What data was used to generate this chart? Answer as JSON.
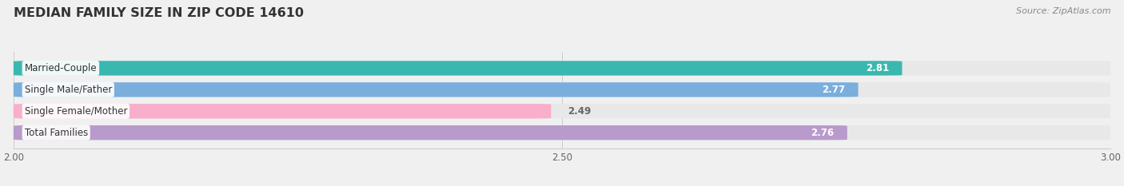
{
  "title": "MEDIAN FAMILY SIZE IN ZIP CODE 14610",
  "source": "Source: ZipAtlas.com",
  "categories": [
    "Married-Couple",
    "Single Male/Father",
    "Single Female/Mother",
    "Total Families"
  ],
  "values": [
    2.81,
    2.77,
    2.49,
    2.76
  ],
  "bar_colors": [
    "#3ab8b0",
    "#7aaedd",
    "#f9aecb",
    "#b89acc"
  ],
  "bar_bg_color": "#e8e8e8",
  "xlim": [
    2.0,
    3.0
  ],
  "xticks": [
    2.0,
    2.5,
    3.0
  ],
  "xtick_labels": [
    "2.00",
    "2.50",
    "3.00"
  ],
  "title_fontsize": 11.5,
  "label_fontsize": 8.5,
  "value_fontsize": 8.5,
  "source_fontsize": 8,
  "bg_color": "#f0f0f0",
  "bar_height": 0.68,
  "label_bg_color": "#ffffff"
}
